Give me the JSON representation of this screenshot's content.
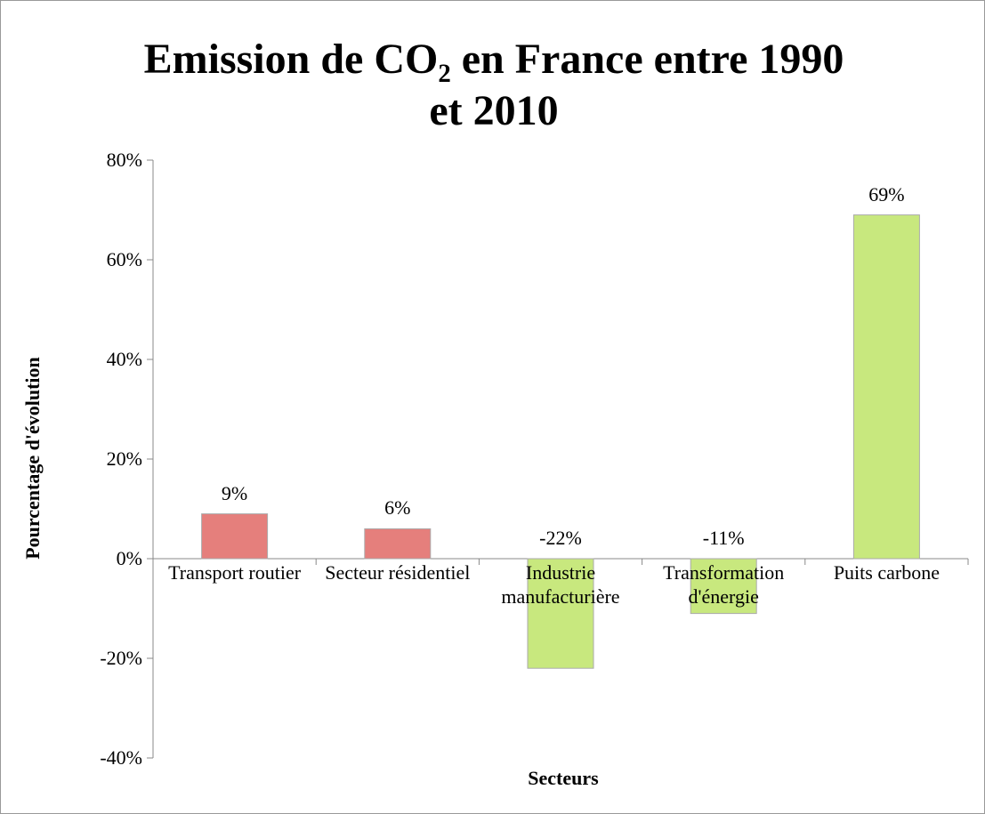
{
  "chart_data": {
    "type": "bar",
    "title": "Emission de CO₂ en France entre 1990 et 2010",
    "xlabel": "Secteurs",
    "ylabel": "Pourcentage d'évolution",
    "categories": [
      "Transport routier",
      "Secteur résidentiel",
      "Industrie manufacturière",
      "Transformation d'énergie",
      "Puits carbone"
    ],
    "values": [
      9,
      6,
      -22,
      -11,
      69
    ],
    "value_labels": [
      "9%",
      "6%",
      "-22%",
      "-11%",
      "69%"
    ],
    "colors": [
      "#e57f7c",
      "#e57f7c",
      "#c8e87e",
      "#c8e87e",
      "#c8e87e"
    ],
    "ylim": [
      -40,
      80
    ],
    "yticks": [
      {
        "value": -40,
        "label": "-40%"
      },
      {
        "value": -20,
        "label": "-20%"
      },
      {
        "value": 0,
        "label": "0%"
      },
      {
        "value": 20,
        "label": "20%"
      },
      {
        "value": 40,
        "label": "40%"
      },
      {
        "value": 60,
        "label": "60%"
      },
      {
        "value": 80,
        "label": "80%"
      }
    ],
    "grid": false
  }
}
